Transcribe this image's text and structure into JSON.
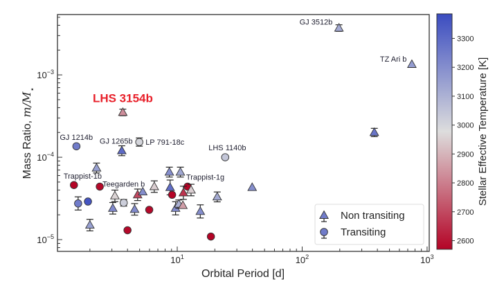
{
  "chart_data": {
    "type": "scatter",
    "xlabel": "Orbital Period [d]",
    "ylabel": {
      "prefix": "Mass Ratio, ",
      "math": "m/M",
      "sub": "⋆"
    },
    "x_scale": "log",
    "y_scale": "log",
    "xlim": [
      1.1,
      1040
    ],
    "ylim": [
      7.2e-06,
      0.0054
    ],
    "x_ticks": [
      {
        "base": "10",
        "exp": "1",
        "value": 10
      },
      {
        "base": "10",
        "exp": "2",
        "value": 100
      },
      {
        "base": "10",
        "exp": "3",
        "value": 1000
      }
    ],
    "y_ticks": [
      {
        "base": "10",
        "exp": "−5",
        "value": 1e-05
      },
      {
        "base": "10",
        "exp": "−4",
        "value": 0.0001
      },
      {
        "base": "10",
        "exp": "−3",
        "value": 0.001
      }
    ],
    "grid": false,
    "colorbar": {
      "label": "Stellar Effective Temperature [K]",
      "range": [
        2570,
        3385
      ],
      "ticks": [
        "2600",
        "2700",
        "2800",
        "2900",
        "3000",
        "3100",
        "3200",
        "3300"
      ],
      "colormap": "coolwarm",
      "colors": {
        "low": "#b40426",
        "mid": "#dddddd",
        "high": "#3b4cc0"
      }
    },
    "legend": {
      "placement": "lower-right",
      "entries": [
        {
          "label": "Non transiting",
          "marker": "triangle"
        },
        {
          "label": "Transiting",
          "marker": "circle"
        }
      ]
    },
    "highlight_color": "#e8202a",
    "points": [
      {
        "p": 1.56,
        "m": 0.000136,
        "teff": 3250,
        "marker": "circle",
        "label": "GJ 1214b"
      },
      {
        "p": 3.6,
        "m": 0.00012,
        "teff": 3300,
        "marker": "triangle",
        "err": 0.06,
        "label": "GJ 1265b"
      },
      {
        "p": 4.97,
        "m": 0.000153,
        "teff": 3000,
        "marker": "circle",
        "err": 0.05,
        "label": "LP 791-18c"
      },
      {
        "p": 24.2,
        "m": 0.0001,
        "teff": 3040,
        "marker": "circle",
        "label": "LHS 1140b"
      },
      {
        "p": 1.49,
        "m": 4.6e-05,
        "teff": 2570,
        "marker": "circle",
        "label": "Trappist-1b"
      },
      {
        "p": 2.4,
        "m": 4.4e-05,
        "teff": 2580,
        "marker": "circle",
        "label": "Teegarden b"
      },
      {
        "p": 12.1,
        "m": 4.4e-05,
        "teff": 2570,
        "marker": "circle",
        "label": "Trappist-1g"
      },
      {
        "p": 3.67,
        "m": 0.00035,
        "teff": 2830,
        "marker": "triangle",
        "err": 0.04,
        "label": "LHS 3154b",
        "highlight": true
      },
      {
        "p": 197,
        "m": 0.0037,
        "teff": 3120,
        "marker": "triangle",
        "err": 0.04,
        "label": "GJ 3512b"
      },
      {
        "p": 755,
        "m": 0.00134,
        "teff": 3160,
        "marker": "triangle",
        "label": "TZ Ari b"
      },
      {
        "p": 378,
        "m": 0.0002,
        "teff": 3270,
        "marker": "triangle",
        "err": 0.05
      },
      {
        "p": 2.26,
        "m": 7.4e-05,
        "teff": 3150,
        "marker": "triangle",
        "err": 0.06
      },
      {
        "p": 3.17,
        "m": 3.4e-05,
        "teff": 2960,
        "marker": "triangle",
        "err": 0.07
      },
      {
        "p": 3.73,
        "m": 2.8e-05,
        "teff": 3020,
        "marker": "circle",
        "err": 0.04
      },
      {
        "p": 1.93,
        "m": 2.9e-05,
        "teff": 3360,
        "marker": "circle"
      },
      {
        "p": 1.61,
        "m": 2.75e-05,
        "teff": 3250,
        "marker": "circle",
        "err": 0.08
      },
      {
        "p": 2.0,
        "m": 1.5e-05,
        "teff": 3150,
        "marker": "triangle",
        "err": 0.07
      },
      {
        "p": 3.05,
        "m": 2.4e-05,
        "teff": 3210,
        "marker": "triangle",
        "err": 0.07
      },
      {
        "p": 4.56,
        "m": 2.33e-05,
        "teff": 3210,
        "marker": "triangle",
        "err": 0.07
      },
      {
        "p": 4.0,
        "m": 1.3e-05,
        "teff": 2580,
        "marker": "circle"
      },
      {
        "p": 5.97,
        "m": 2.3e-05,
        "teff": 2580,
        "marker": "circle"
      },
      {
        "p": 4.82,
        "m": 3.5e-05,
        "teff": 2700,
        "marker": "triangle",
        "err": 0.07
      },
      {
        "p": 5.3,
        "m": 3.8e-05,
        "teff": 3200,
        "marker": "triangle"
      },
      {
        "p": 6.55,
        "m": 4.4e-05,
        "teff": 2950,
        "marker": "triangle",
        "err": 0.07
      },
      {
        "p": 8.65,
        "m": 6.6e-05,
        "teff": 3200,
        "marker": "triangle",
        "err": 0.06
      },
      {
        "p": 10.6,
        "m": 6.6e-05,
        "teff": 3130,
        "marker": "triangle",
        "err": 0.06
      },
      {
        "p": 8.77,
        "m": 4.3e-05,
        "teff": 3290,
        "marker": "triangle",
        "err": 0.09
      },
      {
        "p": 9.1,
        "m": 3.5e-05,
        "teff": 2570,
        "marker": "circle"
      },
      {
        "p": 11.2,
        "m": 3.7e-05,
        "teff": 2660,
        "marker": "triangle",
        "err": 0.08
      },
      {
        "p": 12.9,
        "m": 4e-05,
        "teff": 2950,
        "marker": "triangle",
        "err": 0.07
      },
      {
        "p": 9.7,
        "m": 2.4e-05,
        "teff": 3200,
        "marker": "triangle",
        "err": 0.08
      },
      {
        "p": 10.3,
        "m": 2.7e-05,
        "teff": 3100,
        "marker": "triangle",
        "err": 0.05
      },
      {
        "p": 11.1,
        "m": 2.6e-05,
        "teff": 2860,
        "marker": "triangle"
      },
      {
        "p": 15.3,
        "m": 2.2e-05,
        "teff": 3200,
        "marker": "triangle",
        "err": 0.08
      },
      {
        "p": 20.9,
        "m": 3.3e-05,
        "teff": 3120,
        "marker": "triangle",
        "err": 0.06
      },
      {
        "p": 18.6,
        "m": 1.09e-05,
        "teff": 2570,
        "marker": "circle"
      },
      {
        "p": 39.8,
        "m": 4.3e-05,
        "teff": 3200,
        "marker": "triangle"
      }
    ]
  }
}
